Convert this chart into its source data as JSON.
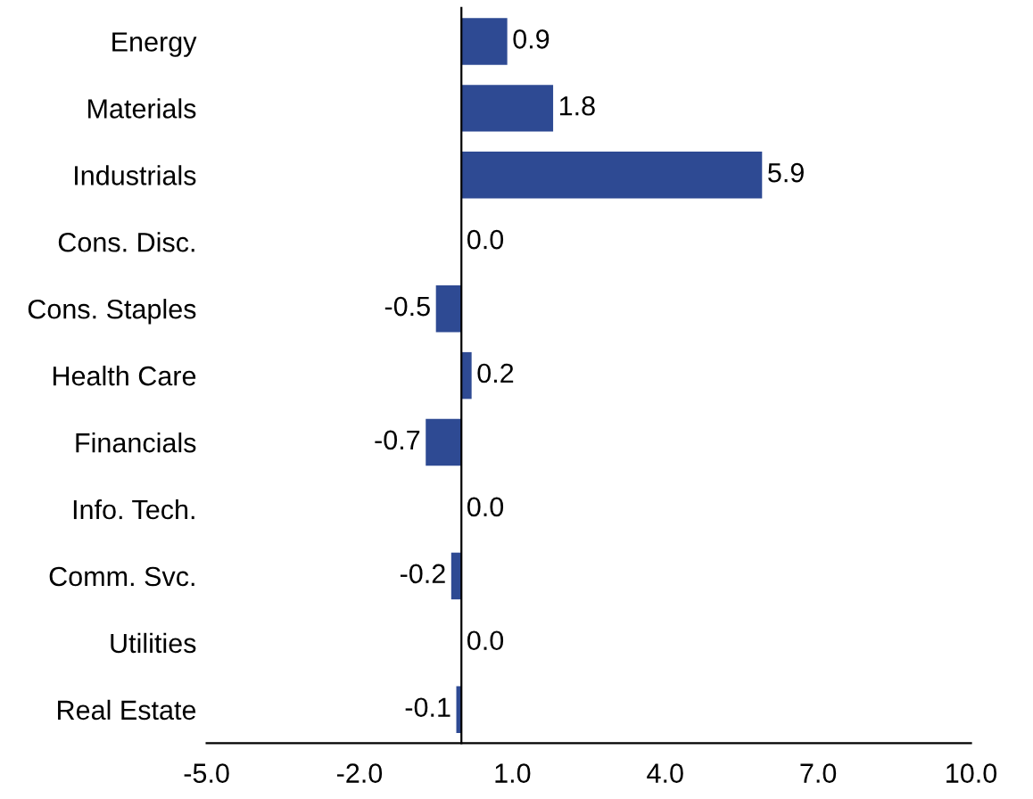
{
  "chart_data": {
    "type": "bar",
    "orientation": "horizontal",
    "categories": [
      "Energy",
      "Materials",
      "Industrials",
      "Cons. Disc.",
      "Cons. Staples",
      "Health Care",
      "Financials",
      "Info. Tech.",
      "Comm. Svc.",
      "Utilities",
      "Real Estate"
    ],
    "values": [
      0.9,
      1.8,
      5.9,
      0.0,
      -0.5,
      0.2,
      -0.7,
      0.0,
      -0.2,
      0.0,
      -0.1
    ],
    "value_labels": [
      "0.9",
      "1.8",
      "5.9",
      "0.0",
      "-0.5",
      "0.2",
      "-0.7",
      "0.0",
      "-0.2",
      "0.0",
      "-0.1"
    ],
    "color": "#2e4a93",
    "xlim": [
      -5,
      10
    ],
    "xticks": [
      {
        "value": -5,
        "label": "-5.0"
      },
      {
        "value": -2,
        "label": "-2.0"
      },
      {
        "value": 1,
        "label": "1.0"
      },
      {
        "value": 4,
        "label": "4.0"
      },
      {
        "value": 7,
        "label": "7.0"
      },
      {
        "value": 10,
        "label": "10.0"
      }
    ],
    "grid": false,
    "legend": false
  }
}
